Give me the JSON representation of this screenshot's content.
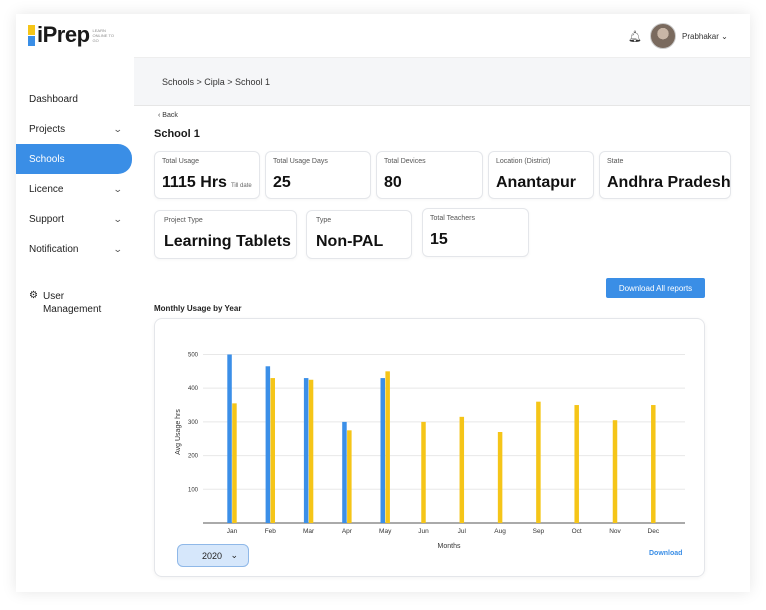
{
  "app": {
    "name": "iPrep",
    "tagline": "LEARN ONLINE TO GO"
  },
  "sidebar": {
    "items": [
      {
        "label": "Dashboard",
        "chevron": false,
        "active": false
      },
      {
        "label": "Projects",
        "chevron": true,
        "active": false
      },
      {
        "label": "Schools",
        "chevron": false,
        "active": true
      },
      {
        "label": "Licence",
        "chevron": true,
        "active": false
      },
      {
        "label": "Support",
        "chevron": true,
        "active": false
      },
      {
        "label": "Notification",
        "chevron": true,
        "active": false
      }
    ],
    "user_mgmt_label_1": "User",
    "user_mgmt_label_2": "Management"
  },
  "header": {
    "user_name": "Prabhakar"
  },
  "breadcrumb": "Schools > Cipla > School 1",
  "back_label": "Back",
  "page_title": "School 1",
  "stats_row1": [
    {
      "label": "Total Usage",
      "value": "1115 Hrs",
      "sub": "Till date"
    },
    {
      "label": "Total Usage Days",
      "value": "25"
    },
    {
      "label": "Total Devices",
      "value": "80"
    },
    {
      "label": "Location (District)",
      "value": "Anantapur"
    },
    {
      "label": "State",
      "value": "Andhra Pradesh"
    }
  ],
  "stats_row2": [
    {
      "label": "Project Type",
      "value": "Learning Tablets"
    },
    {
      "label": "Type",
      "value": "Non-PAL"
    },
    {
      "label": "Total Teachers",
      "value": "15"
    }
  ],
  "download_all_label": "Download All reports",
  "chart_section_title": "Monthly Usage by Year",
  "year_selected": "2020",
  "download_label": "Download",
  "colors": {
    "accent": "#3a8ee6",
    "series_blue": "#3b8fe8",
    "series_yellow": "#f5c518"
  },
  "chart_data": {
    "type": "bar",
    "title": "",
    "xlabel": "Months",
    "ylabel": "Avg Usage hrs",
    "categories": [
      "Jan",
      "Feb",
      "Mar",
      "Apr",
      "May",
      "Jun",
      "Jul",
      "Aug",
      "Sep",
      "Oct",
      "Nov",
      "Dec"
    ],
    "yticks": [
      100,
      200,
      300,
      400,
      500
    ],
    "ylim": [
      0,
      540
    ],
    "grid": true,
    "series": [
      {
        "values": [
          500,
          465,
          430,
          300,
          430,
          null,
          null,
          null,
          null,
          null,
          null,
          null
        ]
      },
      {
        "values": [
          355,
          430,
          425,
          275,
          450,
          300,
          315,
          270,
          360,
          350,
          305,
          350
        ]
      }
    ]
  }
}
